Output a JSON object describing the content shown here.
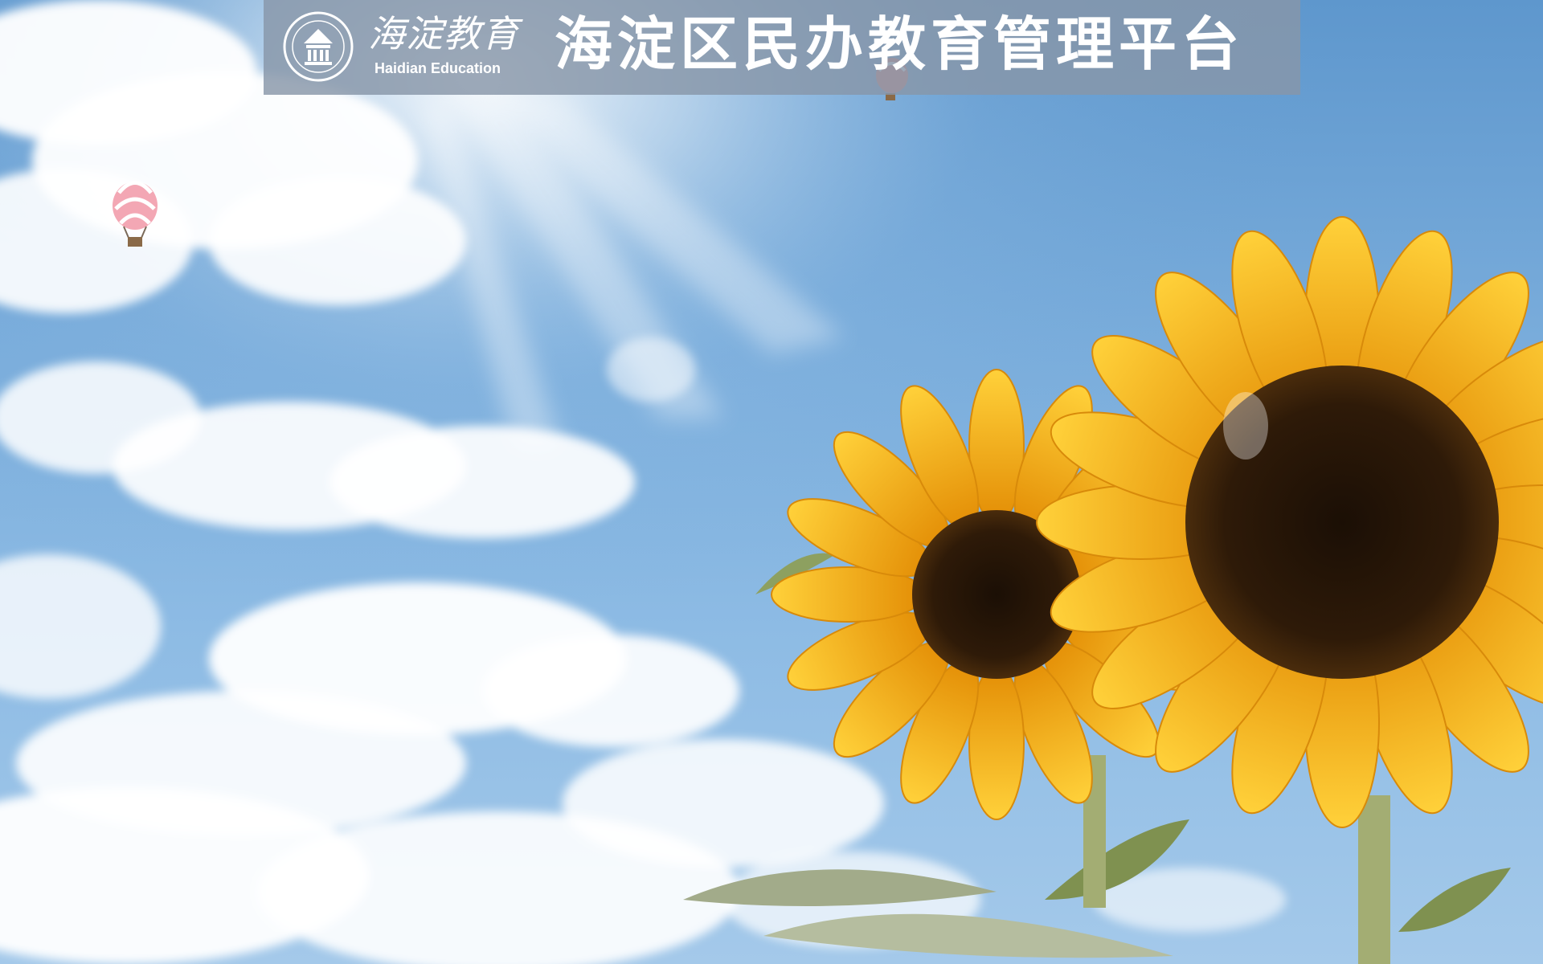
{
  "header": {
    "logo_script": "海淀教育",
    "logo_english": "Haidian Education",
    "title": "海淀区民办教育管理平台"
  },
  "background": {
    "sky_color": "#6aa3d5",
    "cloud_color": "#ffffff",
    "petal_color": "#f6ad14",
    "flower_center_color": "#241406",
    "leaf_color": "#9da886",
    "stem_color": "#8f9b63"
  },
  "colors": {
    "header_overlay": "#8796a8",
    "header_text": "#ffffff"
  }
}
